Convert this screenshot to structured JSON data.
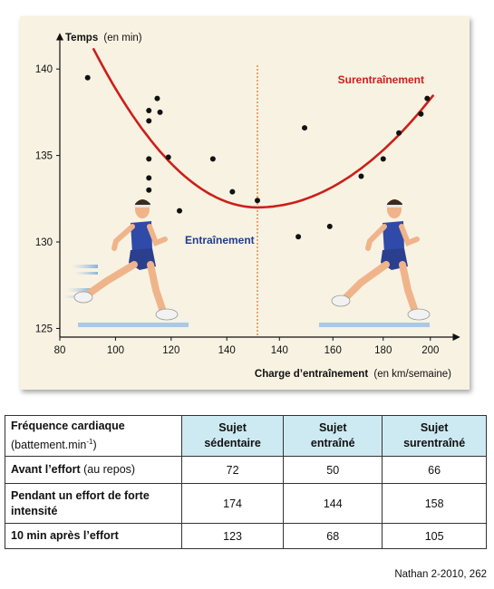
{
  "chart_data": {
    "type": "scatter",
    "ylabel": "Temps",
    "ylabel_unit": "(en min)",
    "xlabel": "Charge d’entraînement",
    "xlabel_unit": "(en km/semaine)",
    "x_ticks": [
      "80",
      "100",
      "120",
      "140",
      "160",
      "180",
      "200"
    ],
    "x_ticks_right": [
      "140",
      "160",
      "180",
      "200"
    ],
    "y_ticks": [
      "125",
      "130",
      "135",
      "140"
    ],
    "ylim": [
      124.5,
      142
    ],
    "grid": false,
    "region_labels": {
      "left": "Entraînement",
      "right": "Surentraînement"
    },
    "points": [
      [
        90,
        139.5
      ],
      [
        112,
        137.6
      ],
      [
        115,
        138.3
      ],
      [
        116,
        137.5
      ],
      [
        112,
        137.0
      ],
      [
        112,
        134.8
      ],
      [
        119,
        134.9
      ],
      [
        112,
        133.7
      ],
      [
        112,
        133.0
      ],
      [
        123,
        131.8
      ],
      [
        135,
        134.8
      ],
      [
        142,
        132.9
      ],
      [
        151,
        132.4
      ],
      [
        164,
        130.3
      ],
      [
        166,
        136.6
      ],
      [
        174,
        130.9
      ],
      [
        184,
        133.8
      ],
      [
        191,
        134.8
      ],
      [
        196,
        136.3
      ],
      [
        203,
        137.4
      ],
      [
        205,
        138.3
      ]
    ],
    "curve_vertex": [
      151,
      132.0
    ],
    "divider_x": 151
  },
  "table": {
    "header_label": "Fréquence cardiaque",
    "header_unit_main": "(battement.min",
    "header_unit_exp": "-1",
    "header_unit_end": ")",
    "columns": [
      "Sujet sédentaire",
      "Sujet entraîné",
      "Sujet surentraîné"
    ],
    "rows": [
      {
        "label": "Avant l’effort",
        "label_suffix": "(au repos)",
        "values": [
          "72",
          "50",
          "66"
        ]
      },
      {
        "label": "Pendant un effort de forte intensité",
        "label_suffix": "",
        "values": [
          "174",
          "144",
          "158"
        ]
      },
      {
        "label": "10 min après l’effort",
        "label_suffix": "",
        "values": [
          "123",
          "68",
          "105"
        ]
      }
    ]
  },
  "source": "Nathan 2-2010, 262",
  "colors": {
    "curve": "#cc1f1a",
    "divider": "#e07a3a",
    "left_label": "#1f3e8f",
    "right_label": "#cc1f1a",
    "header_fill": "#cdeaf2",
    "panel": "#f8f2e2"
  }
}
